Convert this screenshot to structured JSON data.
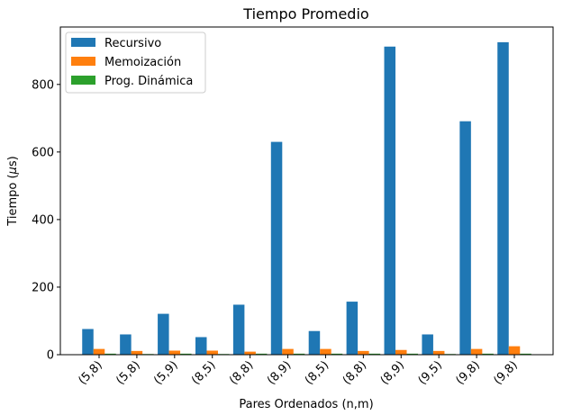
{
  "chart_data": {
    "type": "bar",
    "title": "Tiempo Promedio",
    "xlabel": "Pares Ordenados (n,m)",
    "ylabel_prefix": "Tiempo (",
    "ylabel_symbol": "μ",
    "ylabel_suffix": "s)",
    "categories": [
      "(5,8)",
      "(5,8)",
      "(5,9)",
      "(8,5)",
      "(8,8)",
      "(8,9)",
      "(8,5)",
      "(8,8)",
      "(8,9)",
      "(9,5)",
      "(9,8)",
      "(9,8)"
    ],
    "series": [
      {
        "name": "Recursivo",
        "color": "#1f77b4",
        "values": [
          76,
          60,
          121,
          52,
          148,
          630,
          70,
          157,
          912,
          60,
          691,
          925
        ]
      },
      {
        "name": "Memoización",
        "color": "#ff7f0e",
        "values": [
          17,
          11,
          12,
          12,
          9,
          17,
          17,
          11,
          14,
          11,
          17,
          25
        ]
      },
      {
        "name": "Prog. Dinámica",
        "color": "#2ca02c",
        "values": [
          3,
          2,
          3,
          2,
          3,
          3,
          3,
          3,
          3,
          2,
          3,
          3
        ]
      }
    ],
    "ylim": [
      0,
      970
    ],
    "yticks": [
      0,
      200,
      400,
      600,
      800
    ],
    "legend_position": "upper-left",
    "grid": false
  }
}
